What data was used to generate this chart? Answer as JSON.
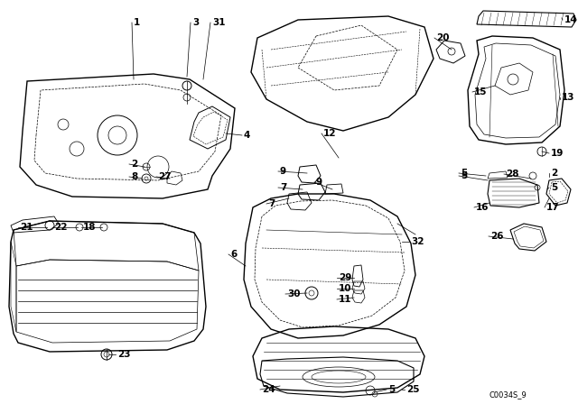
{
  "background_color": "#ffffff",
  "watermark": "C0034S_9",
  "figsize": [
    6.4,
    4.48
  ],
  "dpi": 100
}
